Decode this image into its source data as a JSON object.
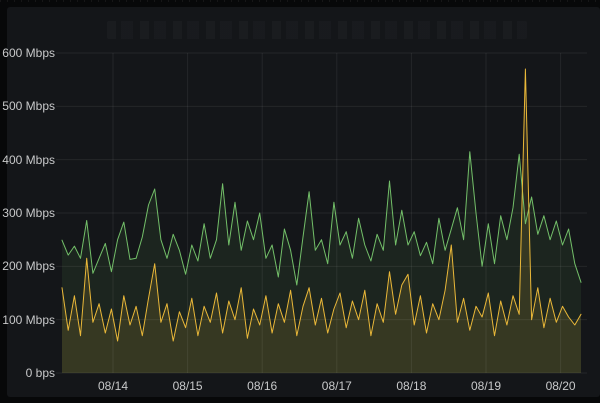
{
  "panel": {
    "header_title": "",
    "background_color": "#141619",
    "page_background_color": "#070809",
    "grid_color": "rgba(255,255,255,0.07)",
    "axis_text_color": "#c8c9ca"
  },
  "y_axis": {
    "tick_labels": [
      "0 bps",
      "100 Mbps",
      "200 Mbps",
      "300 Mbps",
      "400 Mbps",
      "500 Mbps",
      "600 Mbps"
    ]
  },
  "x_axis": {
    "tick_labels": [
      "08/14",
      "08/15",
      "08/16",
      "08/17",
      "08/18",
      "08/19",
      "08/20"
    ]
  },
  "chart_data": {
    "type": "line",
    "title": "",
    "ylabel": "",
    "xlabel": "",
    "ylim": [
      0,
      600
    ],
    "y_unit": "Mbps",
    "y_tick_step": 100,
    "grid": true,
    "legend": "none",
    "x_tick_labels": [
      "08/14",
      "08/15",
      "08/16",
      "08/17",
      "08/18",
      "08/19",
      "08/20"
    ],
    "points_per_day": 12,
    "series": [
      {
        "name": "green-series",
        "color": "#73BF69",
        "fill_opacity": 0.09,
        "values": [
          249,
          221,
          238,
          215,
          286,
          187,
          215,
          243,
          190,
          250,
          283,
          213,
          215,
          255,
          315,
          345,
          250,
          215,
          260,
          230,
          185,
          240,
          210,
          280,
          215,
          250,
          355,
          240,
          320,
          230,
          285,
          250,
          300,
          215,
          240,
          180,
          270,
          230,
          165,
          255,
          340,
          230,
          250,
          205,
          320,
          240,
          265,
          215,
          290,
          240,
          210,
          260,
          230,
          360,
          240,
          305,
          240,
          265,
          220,
          245,
          205,
          290,
          230,
          270,
          310,
          250,
          415,
          300,
          200,
          280,
          205,
          295,
          250,
          310,
          410,
          280,
          330,
          260,
          295,
          250,
          285,
          240,
          270,
          205,
          170
        ]
      },
      {
        "name": "yellow-series",
        "color": "#EAB839",
        "fill_opacity": 0.13,
        "values": [
          160,
          80,
          145,
          70,
          215,
          95,
          130,
          75,
          120,
          60,
          145,
          90,
          125,
          70,
          140,
          205,
          95,
          130,
          60,
          115,
          85,
          140,
          70,
          125,
          95,
          150,
          75,
          135,
          100,
          160,
          65,
          120,
          90,
          145,
          75,
          130,
          95,
          155,
          70,
          125,
          160,
          90,
          140,
          75,
          120,
          150,
          85,
          135,
          100,
          155,
          70,
          130,
          95,
          190,
          110,
          165,
          185,
          90,
          145,
          75,
          130,
          100,
          155,
          240,
          95,
          140,
          80,
          125,
          105,
          150,
          70,
          135,
          90,
          145,
          110,
          570,
          100,
          160,
          85,
          140,
          95,
          125,
          105,
          90,
          110
        ]
      }
    ]
  }
}
